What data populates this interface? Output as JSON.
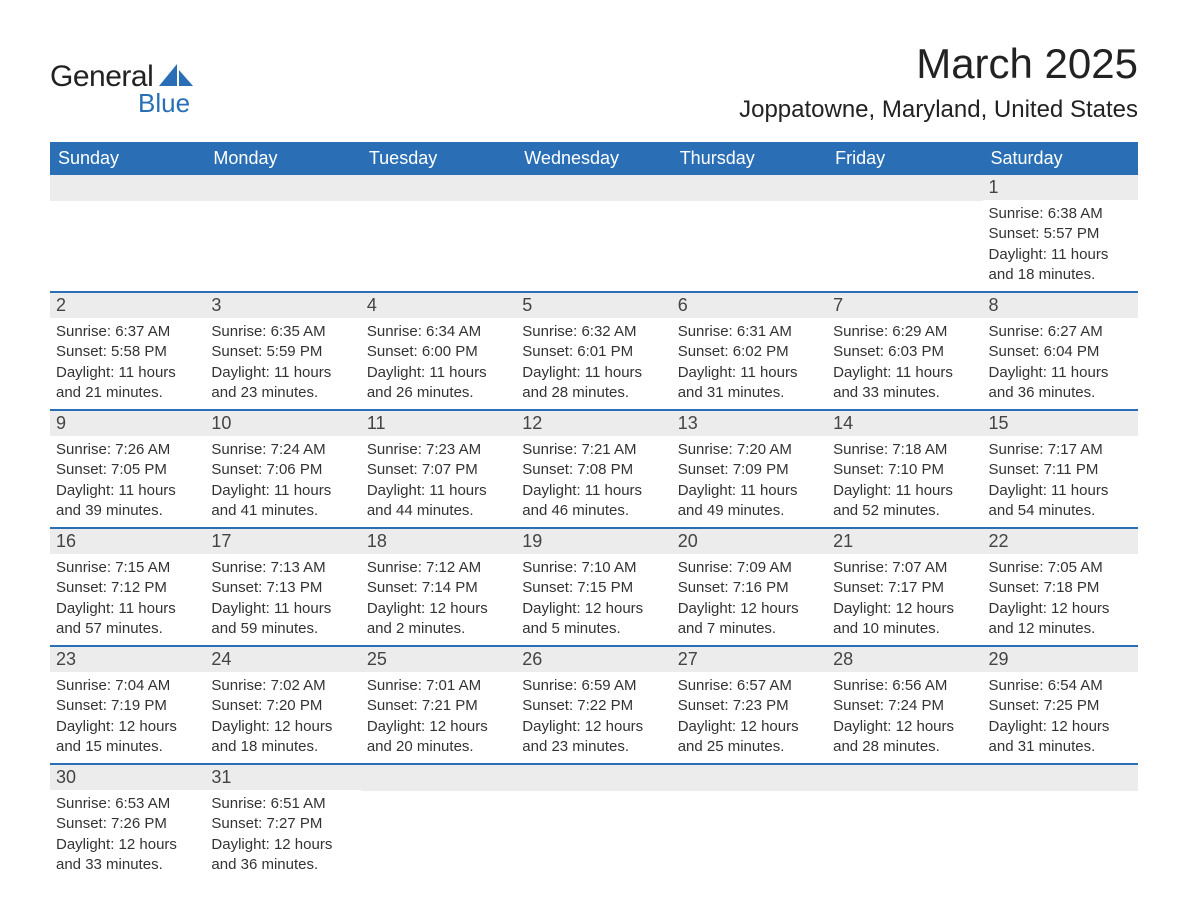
{
  "logo": {
    "word1": "General",
    "word2": "Blue",
    "word1_color": "#222222",
    "word2_color": "#2a6fb5",
    "shape_color": "#2a6fb5"
  },
  "title": "March 2025",
  "location": "Joppatowne, Maryland, United States",
  "colors": {
    "header_bg": "#2a6fb5",
    "header_text": "#ffffff",
    "daynum_bg": "#ececec",
    "row_border": "#2a6fb5",
    "body_text": "#333333",
    "background": "#ffffff"
  },
  "typography": {
    "title_fontsize_pt": 32,
    "location_fontsize_pt": 18,
    "header_fontsize_pt": 14,
    "daynum_fontsize_pt": 14,
    "body_fontsize_pt": 11
  },
  "calendar": {
    "type": "table",
    "columns": [
      "Sunday",
      "Monday",
      "Tuesday",
      "Wednesday",
      "Thursday",
      "Friday",
      "Saturday"
    ],
    "weeks": [
      [
        null,
        null,
        null,
        null,
        null,
        null,
        {
          "day": "1",
          "sunrise": "Sunrise: 6:38 AM",
          "sunset": "Sunset: 5:57 PM",
          "daylight1": "Daylight: 11 hours",
          "daylight2": "and 18 minutes."
        }
      ],
      [
        {
          "day": "2",
          "sunrise": "Sunrise: 6:37 AM",
          "sunset": "Sunset: 5:58 PM",
          "daylight1": "Daylight: 11 hours",
          "daylight2": "and 21 minutes."
        },
        {
          "day": "3",
          "sunrise": "Sunrise: 6:35 AM",
          "sunset": "Sunset: 5:59 PM",
          "daylight1": "Daylight: 11 hours",
          "daylight2": "and 23 minutes."
        },
        {
          "day": "4",
          "sunrise": "Sunrise: 6:34 AM",
          "sunset": "Sunset: 6:00 PM",
          "daylight1": "Daylight: 11 hours",
          "daylight2": "and 26 minutes."
        },
        {
          "day": "5",
          "sunrise": "Sunrise: 6:32 AM",
          "sunset": "Sunset: 6:01 PM",
          "daylight1": "Daylight: 11 hours",
          "daylight2": "and 28 minutes."
        },
        {
          "day": "6",
          "sunrise": "Sunrise: 6:31 AM",
          "sunset": "Sunset: 6:02 PM",
          "daylight1": "Daylight: 11 hours",
          "daylight2": "and 31 minutes."
        },
        {
          "day": "7",
          "sunrise": "Sunrise: 6:29 AM",
          "sunset": "Sunset: 6:03 PM",
          "daylight1": "Daylight: 11 hours",
          "daylight2": "and 33 minutes."
        },
        {
          "day": "8",
          "sunrise": "Sunrise: 6:27 AM",
          "sunset": "Sunset: 6:04 PM",
          "daylight1": "Daylight: 11 hours",
          "daylight2": "and 36 minutes."
        }
      ],
      [
        {
          "day": "9",
          "sunrise": "Sunrise: 7:26 AM",
          "sunset": "Sunset: 7:05 PM",
          "daylight1": "Daylight: 11 hours",
          "daylight2": "and 39 minutes."
        },
        {
          "day": "10",
          "sunrise": "Sunrise: 7:24 AM",
          "sunset": "Sunset: 7:06 PM",
          "daylight1": "Daylight: 11 hours",
          "daylight2": "and 41 minutes."
        },
        {
          "day": "11",
          "sunrise": "Sunrise: 7:23 AM",
          "sunset": "Sunset: 7:07 PM",
          "daylight1": "Daylight: 11 hours",
          "daylight2": "and 44 minutes."
        },
        {
          "day": "12",
          "sunrise": "Sunrise: 7:21 AM",
          "sunset": "Sunset: 7:08 PM",
          "daylight1": "Daylight: 11 hours",
          "daylight2": "and 46 minutes."
        },
        {
          "day": "13",
          "sunrise": "Sunrise: 7:20 AM",
          "sunset": "Sunset: 7:09 PM",
          "daylight1": "Daylight: 11 hours",
          "daylight2": "and 49 minutes."
        },
        {
          "day": "14",
          "sunrise": "Sunrise: 7:18 AM",
          "sunset": "Sunset: 7:10 PM",
          "daylight1": "Daylight: 11 hours",
          "daylight2": "and 52 minutes."
        },
        {
          "day": "15",
          "sunrise": "Sunrise: 7:17 AM",
          "sunset": "Sunset: 7:11 PM",
          "daylight1": "Daylight: 11 hours",
          "daylight2": "and 54 minutes."
        }
      ],
      [
        {
          "day": "16",
          "sunrise": "Sunrise: 7:15 AM",
          "sunset": "Sunset: 7:12 PM",
          "daylight1": "Daylight: 11 hours",
          "daylight2": "and 57 minutes."
        },
        {
          "day": "17",
          "sunrise": "Sunrise: 7:13 AM",
          "sunset": "Sunset: 7:13 PM",
          "daylight1": "Daylight: 11 hours",
          "daylight2": "and 59 minutes."
        },
        {
          "day": "18",
          "sunrise": "Sunrise: 7:12 AM",
          "sunset": "Sunset: 7:14 PM",
          "daylight1": "Daylight: 12 hours",
          "daylight2": "and 2 minutes."
        },
        {
          "day": "19",
          "sunrise": "Sunrise: 7:10 AM",
          "sunset": "Sunset: 7:15 PM",
          "daylight1": "Daylight: 12 hours",
          "daylight2": "and 5 minutes."
        },
        {
          "day": "20",
          "sunrise": "Sunrise: 7:09 AM",
          "sunset": "Sunset: 7:16 PM",
          "daylight1": "Daylight: 12 hours",
          "daylight2": "and 7 minutes."
        },
        {
          "day": "21",
          "sunrise": "Sunrise: 7:07 AM",
          "sunset": "Sunset: 7:17 PM",
          "daylight1": "Daylight: 12 hours",
          "daylight2": "and 10 minutes."
        },
        {
          "day": "22",
          "sunrise": "Sunrise: 7:05 AM",
          "sunset": "Sunset: 7:18 PM",
          "daylight1": "Daylight: 12 hours",
          "daylight2": "and 12 minutes."
        }
      ],
      [
        {
          "day": "23",
          "sunrise": "Sunrise: 7:04 AM",
          "sunset": "Sunset: 7:19 PM",
          "daylight1": "Daylight: 12 hours",
          "daylight2": "and 15 minutes."
        },
        {
          "day": "24",
          "sunrise": "Sunrise: 7:02 AM",
          "sunset": "Sunset: 7:20 PM",
          "daylight1": "Daylight: 12 hours",
          "daylight2": "and 18 minutes."
        },
        {
          "day": "25",
          "sunrise": "Sunrise: 7:01 AM",
          "sunset": "Sunset: 7:21 PM",
          "daylight1": "Daylight: 12 hours",
          "daylight2": "and 20 minutes."
        },
        {
          "day": "26",
          "sunrise": "Sunrise: 6:59 AM",
          "sunset": "Sunset: 7:22 PM",
          "daylight1": "Daylight: 12 hours",
          "daylight2": "and 23 minutes."
        },
        {
          "day": "27",
          "sunrise": "Sunrise: 6:57 AM",
          "sunset": "Sunset: 7:23 PM",
          "daylight1": "Daylight: 12 hours",
          "daylight2": "and 25 minutes."
        },
        {
          "day": "28",
          "sunrise": "Sunrise: 6:56 AM",
          "sunset": "Sunset: 7:24 PM",
          "daylight1": "Daylight: 12 hours",
          "daylight2": "and 28 minutes."
        },
        {
          "day": "29",
          "sunrise": "Sunrise: 6:54 AM",
          "sunset": "Sunset: 7:25 PM",
          "daylight1": "Daylight: 12 hours",
          "daylight2": "and 31 minutes."
        }
      ],
      [
        {
          "day": "30",
          "sunrise": "Sunrise: 6:53 AM",
          "sunset": "Sunset: 7:26 PM",
          "daylight1": "Daylight: 12 hours",
          "daylight2": "and 33 minutes."
        },
        {
          "day": "31",
          "sunrise": "Sunrise: 6:51 AM",
          "sunset": "Sunset: 7:27 PM",
          "daylight1": "Daylight: 12 hours",
          "daylight2": "and 36 minutes."
        },
        null,
        null,
        null,
        null,
        null
      ]
    ]
  }
}
